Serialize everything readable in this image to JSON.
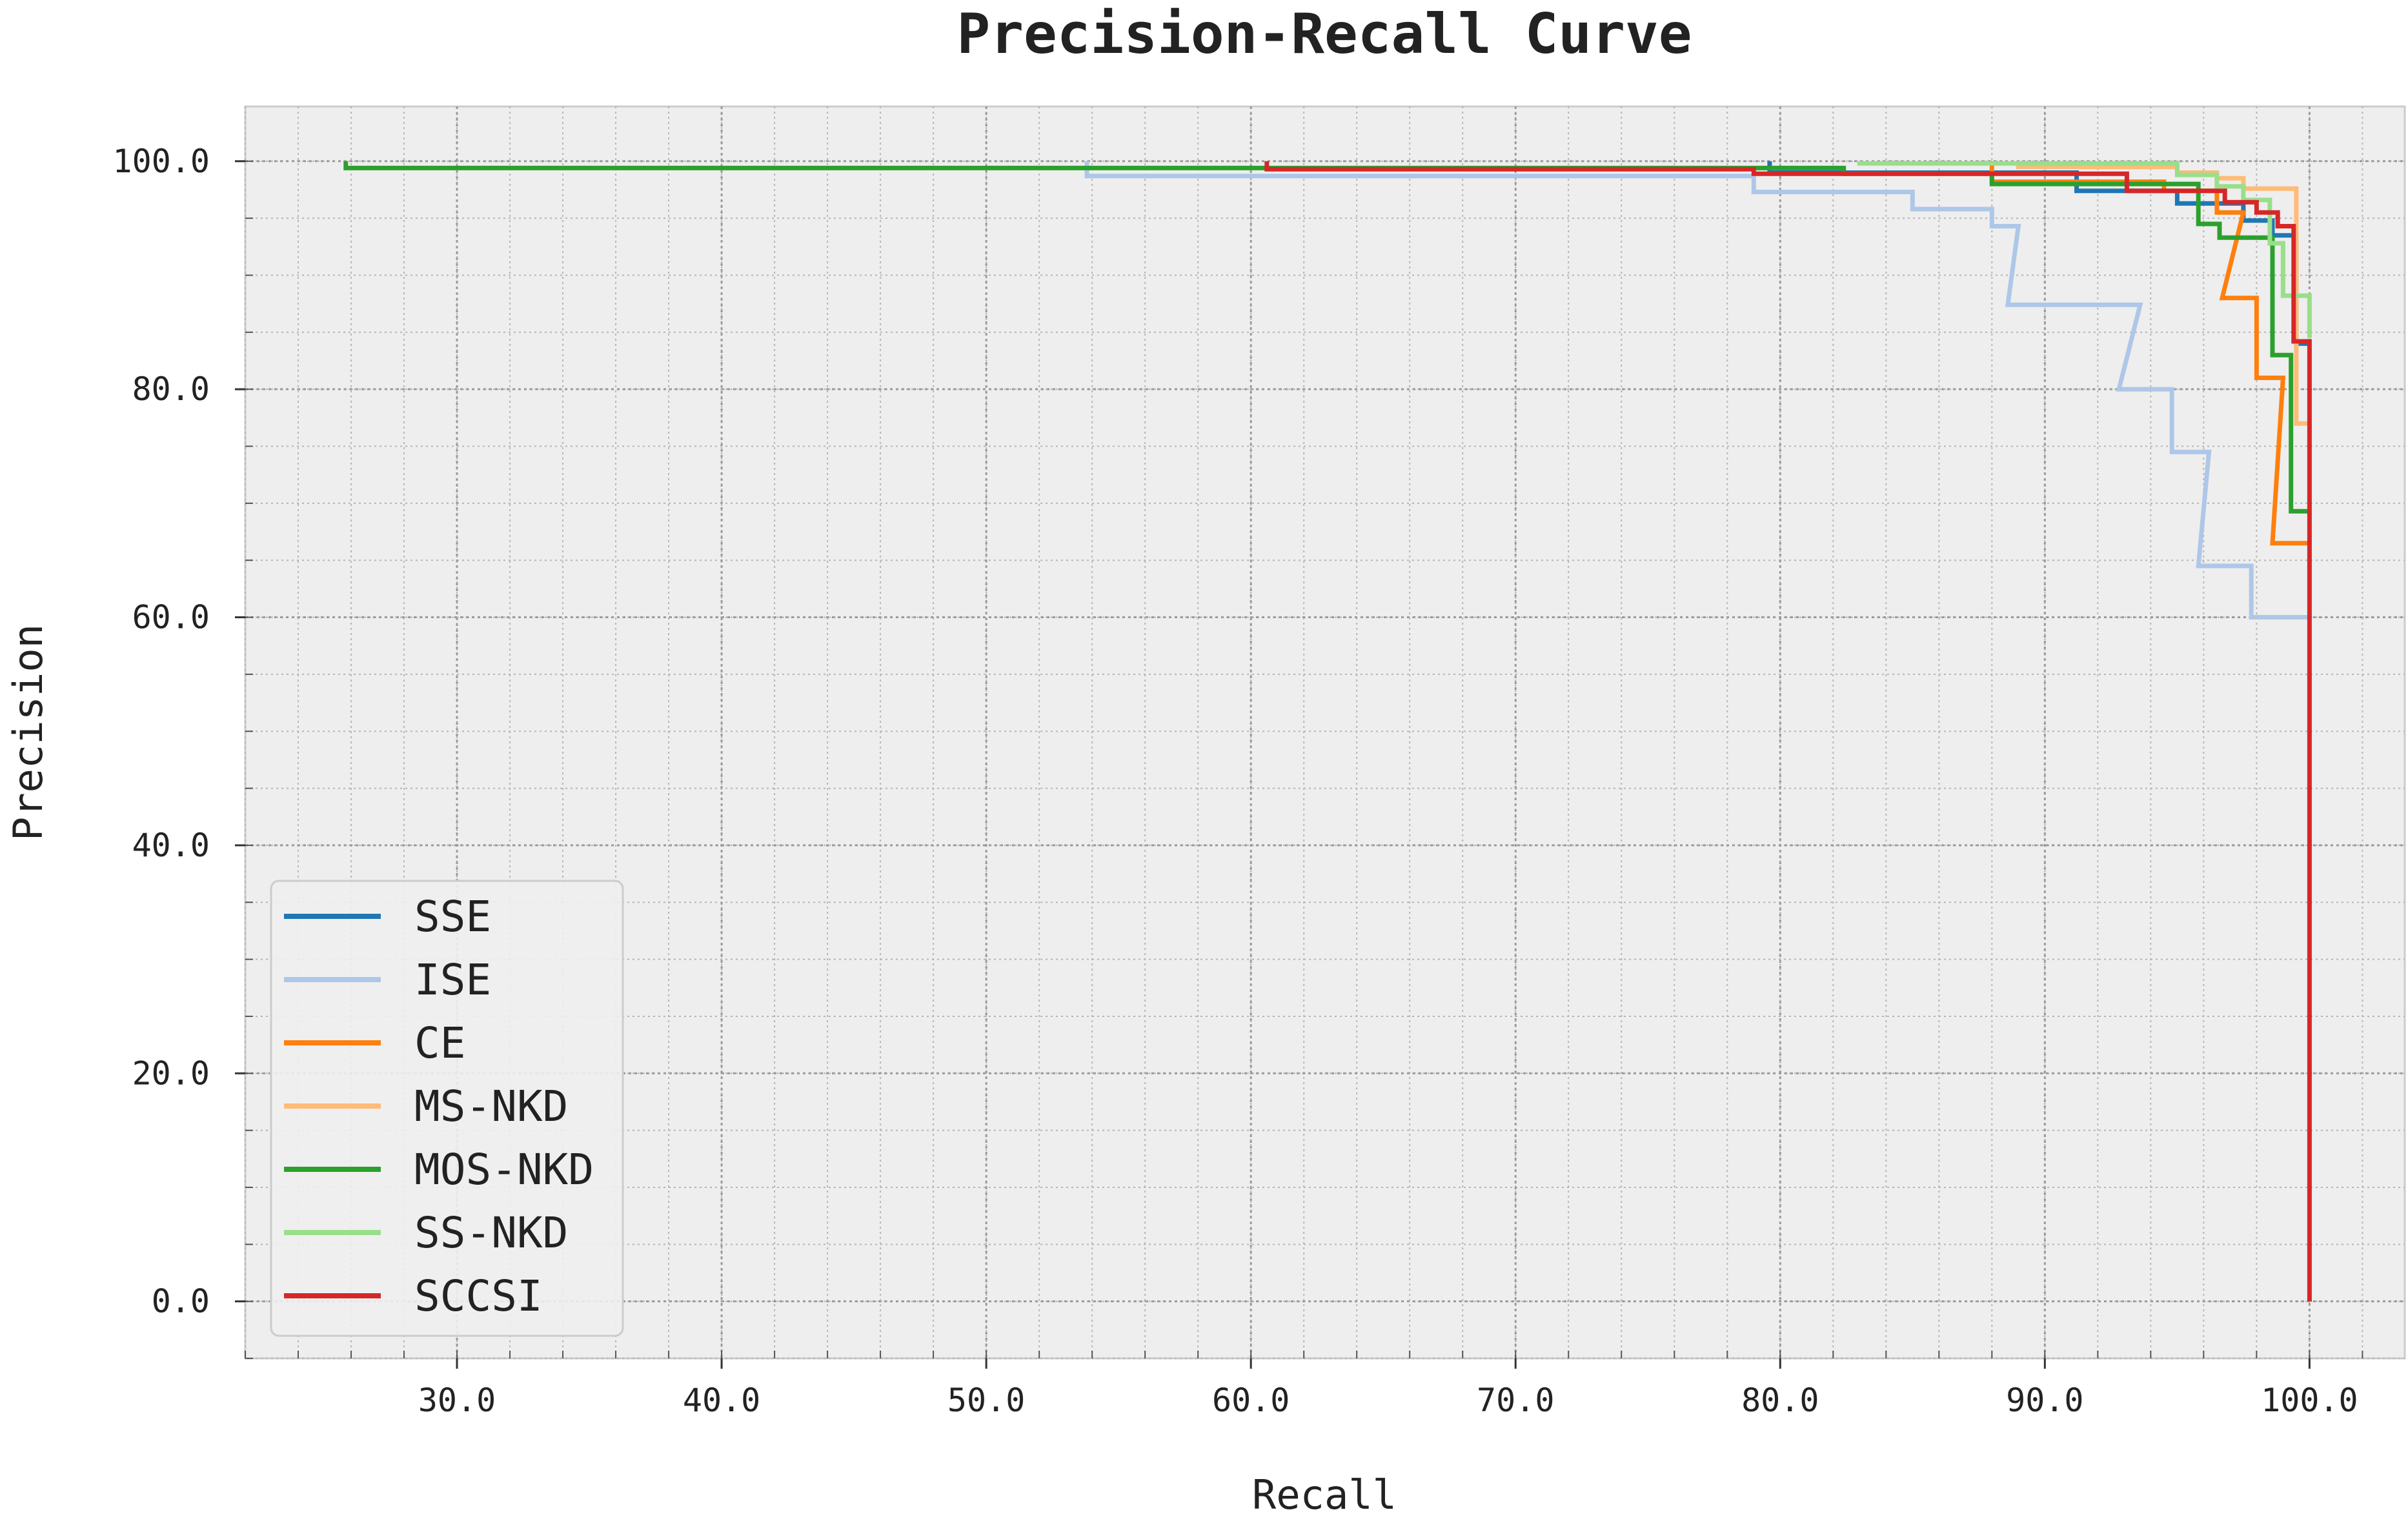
{
  "chart_data": {
    "type": "line",
    "title": "Precision-Recall Curve",
    "xlabel": "Recall",
    "ylabel": "Precision",
    "xlim": [
      22.0,
      103.6
    ],
    "ylim": [
      -5.0,
      104.8
    ],
    "xticks": [
      30.0,
      40.0,
      50.0,
      60.0,
      70.0,
      80.0,
      90.0,
      100.0
    ],
    "yticks": [
      0.0,
      20.0,
      40.0,
      60.0,
      80.0,
      100.0
    ],
    "tick_format": "one_decimal",
    "grid": true,
    "legend_position": "lower-left",
    "background": "#eeeeee",
    "series": [
      {
        "name": "SSE",
        "color": "#1f77b4",
        "points": [
          [
            79.6,
            100.0
          ],
          [
            79.6,
            99.0
          ],
          [
            91.2,
            99.0
          ],
          [
            91.2,
            97.4
          ],
          [
            95.0,
            97.4
          ],
          [
            95.0,
            96.3
          ],
          [
            97.5,
            96.3
          ],
          [
            97.5,
            94.8
          ],
          [
            98.6,
            94.8
          ],
          [
            98.6,
            93.5
          ],
          [
            99.5,
            93.5
          ],
          [
            99.5,
            84.0
          ],
          [
            100.0,
            84.0
          ]
        ]
      },
      {
        "name": "ISE",
        "color": "#aec7e8",
        "points": [
          [
            53.8,
            100.0
          ],
          [
            53.8,
            98.7
          ],
          [
            79.0,
            98.7
          ],
          [
            79.0,
            97.3
          ],
          [
            85.0,
            97.3
          ],
          [
            85.0,
            95.8
          ],
          [
            88.0,
            95.8
          ],
          [
            88.0,
            94.3
          ],
          [
            89.0,
            94.3
          ],
          [
            88.6,
            87.4
          ],
          [
            93.6,
            87.4
          ],
          [
            92.8,
            80.0
          ],
          [
            94.8,
            80.0
          ],
          [
            94.8,
            74.5
          ],
          [
            96.2,
            74.5
          ],
          [
            95.8,
            64.5
          ],
          [
            97.8,
            64.5
          ],
          [
            97.8,
            60.0
          ],
          [
            100.0,
            60.0
          ]
        ]
      },
      {
        "name": "CE",
        "color": "#ff7f0e",
        "points": [
          [
            88.0,
            100.0
          ],
          [
            88.0,
            98.2
          ],
          [
            94.5,
            98.2
          ],
          [
            94.5,
            97.4
          ],
          [
            96.5,
            97.4
          ],
          [
            96.5,
            95.5
          ],
          [
            97.5,
            95.5
          ],
          [
            96.7,
            88.0
          ],
          [
            98.0,
            88.0
          ],
          [
            98.0,
            81.0
          ],
          [
            99.0,
            81.0
          ],
          [
            98.6,
            66.5
          ],
          [
            100.0,
            66.5
          ]
        ]
      },
      {
        "name": "MS-NKD",
        "color": "#ffbb78",
        "points": [
          [
            89.0,
            100.0
          ],
          [
            89.0,
            99.5
          ],
          [
            95.0,
            99.5
          ],
          [
            95.0,
            99.0
          ],
          [
            96.5,
            99.0
          ],
          [
            96.5,
            98.5
          ],
          [
            97.5,
            98.5
          ],
          [
            97.5,
            97.6
          ],
          [
            99.5,
            97.6
          ],
          [
            99.5,
            77.0
          ],
          [
            100.0,
            77.0
          ]
        ]
      },
      {
        "name": "MOS-NKD",
        "color": "#2ca02c",
        "points": [
          [
            25.8,
            100.0
          ],
          [
            25.8,
            99.4
          ],
          [
            82.4,
            99.4
          ],
          [
            82.4,
            98.9
          ],
          [
            88.0,
            98.9
          ],
          [
            88.0,
            98.0
          ],
          [
            95.8,
            98.0
          ],
          [
            95.8,
            94.5
          ],
          [
            96.6,
            94.5
          ],
          [
            96.6,
            93.3
          ],
          [
            98.6,
            93.3
          ],
          [
            98.6,
            83.0
          ],
          [
            99.3,
            83.0
          ],
          [
            99.3,
            69.3
          ],
          [
            100.0,
            69.3
          ]
        ]
      },
      {
        "name": "SS-NKD",
        "color": "#98df8a",
        "points": [
          [
            83.0,
            100.0
          ],
          [
            83.0,
            99.8
          ],
          [
            95.0,
            99.8
          ],
          [
            95.0,
            98.8
          ],
          [
            96.5,
            98.8
          ],
          [
            96.5,
            97.8
          ],
          [
            97.5,
            97.8
          ],
          [
            97.5,
            96.6
          ],
          [
            98.5,
            96.6
          ],
          [
            98.5,
            92.8
          ],
          [
            99.0,
            92.8
          ],
          [
            99.0,
            88.2
          ],
          [
            100.0,
            88.2
          ],
          [
            100.0,
            84.5
          ]
        ]
      },
      {
        "name": "SCCSI",
        "color": "#d62728",
        "points": [
          [
            60.6,
            100.0
          ],
          [
            60.6,
            99.3
          ],
          [
            79.0,
            99.3
          ],
          [
            79.0,
            98.9
          ],
          [
            93.1,
            98.9
          ],
          [
            93.1,
            97.4
          ],
          [
            96.8,
            97.4
          ],
          [
            96.8,
            96.4
          ],
          [
            98.0,
            96.4
          ],
          [
            98.0,
            95.5
          ],
          [
            98.8,
            95.5
          ],
          [
            98.8,
            94.3
          ],
          [
            99.4,
            94.3
          ],
          [
            99.4,
            84.2
          ],
          [
            100.0,
            84.2
          ],
          [
            100.0,
            0.0
          ]
        ]
      }
    ]
  }
}
